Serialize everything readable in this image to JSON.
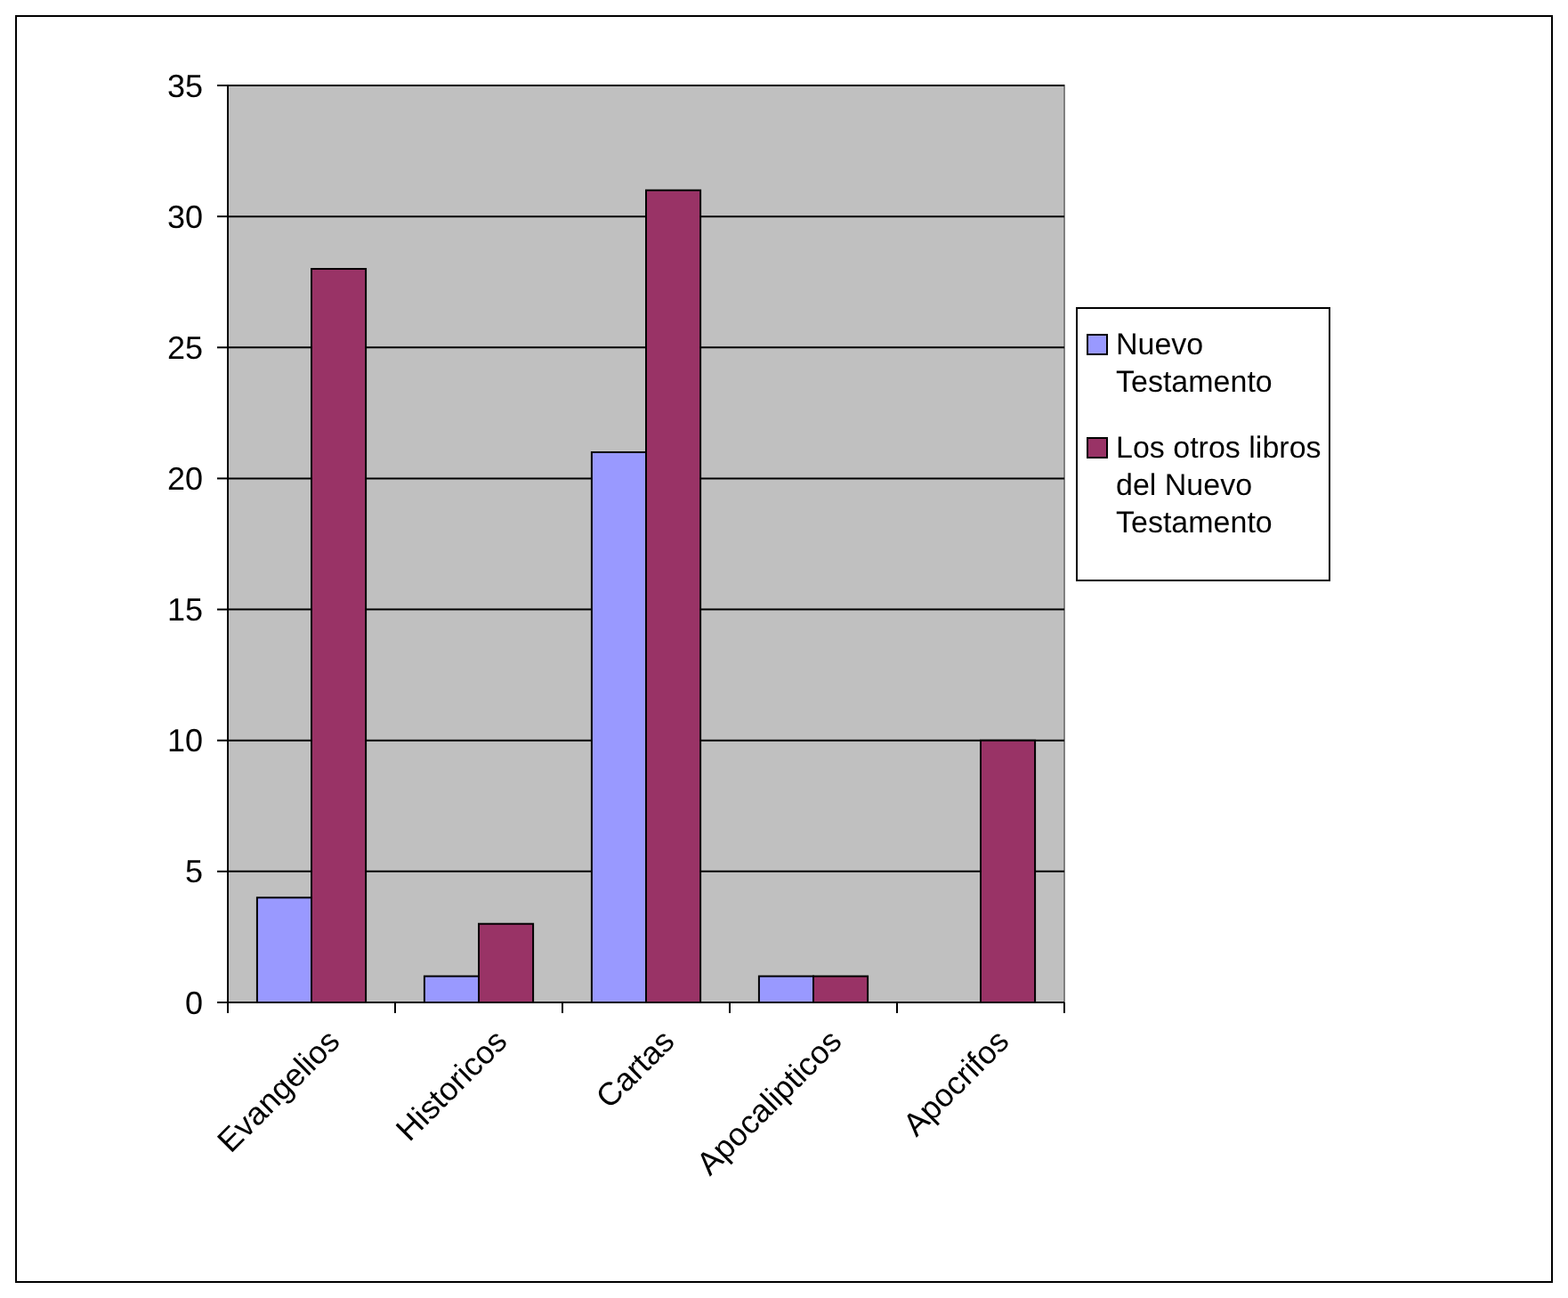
{
  "chart_data": {
    "type": "bar",
    "categories": [
      "Evangelios",
      "Historicos",
      "Cartas",
      "Apocalipticos",
      "Apocrifos"
    ],
    "series": [
      {
        "name": "Nuevo Testamento",
        "color": "#9999ff",
        "values": [
          4,
          1,
          21,
          1,
          null
        ]
      },
      {
        "name": "Los otros libros del Nuevo Testamento",
        "color": "#993366",
        "values": [
          28,
          3,
          31,
          1,
          10
        ]
      }
    ],
    "ylim": [
      0,
      35
    ],
    "yticks": [
      0,
      5,
      10,
      15,
      20,
      25,
      30,
      35
    ],
    "grid": "y",
    "legend": "right"
  }
}
